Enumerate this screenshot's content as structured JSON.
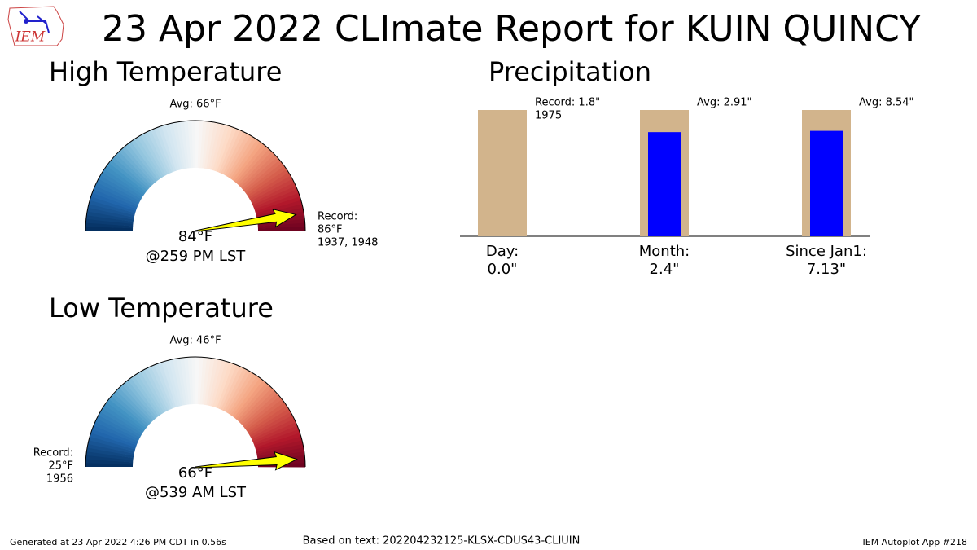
{
  "title": "23 Apr 2022 CLImate Report for KUIN QUINCY",
  "logo_text": "IEM",
  "chart_data": [
    {
      "type": "gauge",
      "title": "High Temperature",
      "lim": [
        46,
        86
      ],
      "value": 84,
      "value_label": "84°F",
      "time_label": "@259 PM LST",
      "avg": 66,
      "avg_label": "Avg: 66°F",
      "record": 86,
      "record_label": [
        "Record:",
        "86°F",
        "1937, 1948"
      ],
      "needle_color": "#ffff00"
    },
    {
      "type": "gauge",
      "title": "Low Temperature",
      "lim": [
        25,
        67
      ],
      "value": 66,
      "value_label": "66°F",
      "time_label": "@539 AM LST",
      "avg": 46,
      "avg_label": "Avg: 46°F",
      "record": 25,
      "record_label": [
        "Record:",
        "25°F",
        "1956"
      ],
      "needle_color": "#ffff00"
    },
    {
      "type": "bar",
      "title": "Precipitation",
      "categories": [
        "Day:",
        "Month:",
        "Since Jan1:"
      ],
      "values": [
        0.0,
        2.4,
        7.13
      ],
      "value_labels": [
        "0.0\"",
        "2.4\"",
        "7.13\""
      ],
      "color": "#0000ff",
      "reference_values": [
        1.8,
        2.91,
        8.54
      ],
      "reference_labels": [
        [
          "Record: 1.8\"",
          "1975"
        ],
        [
          "Avg: 2.91\""
        ],
        [
          "Avg: 8.54\""
        ]
      ],
      "reference_color": "#d2b48c"
    }
  ],
  "footer": {
    "left": "Generated at 23 Apr 2022 4:26 PM CDT in 0.56s",
    "center": "Based on text: 202204232125-KLSX-CDUS43-CLIUIN",
    "right": "IEM Autoplot App #218"
  }
}
